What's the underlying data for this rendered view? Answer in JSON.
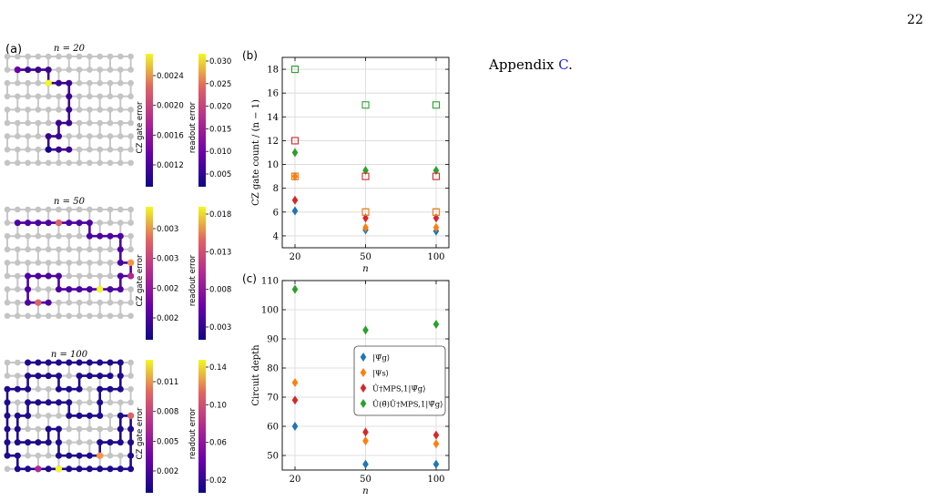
{
  "page": {
    "number": "22",
    "text_prefix": "Appendix ",
    "text_link": "C",
    "text_suffix": "."
  },
  "panel_a": {
    "label": "(a)",
    "rows": [
      {
        "title": "n = 20",
        "cz_label": "CZ gate error",
        "cz_ticks": [
          "0.0024",
          "0.0020",
          "0.0016",
          "0.0012"
        ],
        "ro_label": "readout error",
        "ro_ticks": [
          "0.030",
          "0.025",
          "0.020",
          "0.015",
          "0.010",
          "0.005"
        ]
      },
      {
        "title": "n = 50",
        "cz_label": "CZ gate error",
        "cz_ticks": [
          "0.003",
          "0.003",
          "0.002",
          "0.002"
        ],
        "ro_label": "readout error",
        "ro_ticks": [
          "0.018",
          "0.013",
          "0.008",
          "0.003"
        ]
      },
      {
        "title": "n = 100",
        "cz_label": "CZ gate error",
        "cz_ticks": [
          "0.011",
          "0.008",
          "0.005",
          "0.002"
        ],
        "ro_label": "readout error",
        "ro_ticks": [
          "0.14",
          "0.10",
          "0.06",
          "0.02"
        ]
      }
    ]
  },
  "chart_data": [
    {
      "type": "scatter",
      "panel": "(b)",
      "xlabel": "n",
      "ylabel": "CZ gate count / (n − 1)",
      "x": [
        20,
        50,
        100
      ],
      "x_ticks": [
        "20",
        "50",
        "100"
      ],
      "ylim": [
        3,
        19
      ],
      "y_ticks": [
        4,
        6,
        8,
        10,
        12,
        14,
        16,
        18
      ],
      "grid": true,
      "series": [
        {
          "marker": "diamond",
          "color": "#1f77b4",
          "values": [
            6.1,
            4.5,
            4.4
          ]
        },
        {
          "marker": "diamond",
          "color": "#ff7f0e",
          "values": [
            9.0,
            4.7,
            4.7
          ]
        },
        {
          "marker": "diamond",
          "color": "#d62728",
          "values": [
            7.0,
            5.5,
            5.5
          ]
        },
        {
          "marker": "diamond",
          "color": "#2ca02c",
          "values": [
            11.0,
            9.5,
            9.5
          ]
        },
        {
          "marker": "open-square",
          "color": "#1f77b4",
          "values": [
            9.0,
            6.0,
            6.0
          ]
        },
        {
          "marker": "open-square",
          "color": "#ff7f0e",
          "values": [
            9.0,
            6.0,
            6.0
          ]
        },
        {
          "marker": "open-square",
          "color": "#d62728",
          "values": [
            12.0,
            9.0,
            9.0
          ]
        },
        {
          "marker": "open-square",
          "color": "#2ca02c",
          "values": [
            18.0,
            15.0,
            15.0
          ]
        }
      ]
    },
    {
      "type": "scatter",
      "panel": "(c)",
      "xlabel": "n",
      "ylabel": "Circuit depth",
      "x": [
        20,
        50,
        100
      ],
      "x_ticks": [
        "20",
        "50",
        "100"
      ],
      "ylim": [
        45,
        110
      ],
      "y_ticks": [
        50,
        60,
        70,
        80,
        90,
        100,
        110
      ],
      "grid": true,
      "legend": "center-right",
      "series": [
        {
          "name": "|Ψ̃g⟩",
          "marker": "diamond",
          "color": "#1f77b4",
          "values": [
            60,
            47,
            47
          ]
        },
        {
          "name": "|Ψs⟩",
          "marker": "diamond",
          "color": "#ff7f0e",
          "values": [
            75,
            55,
            54
          ]
        },
        {
          "name": "Û†MPS,1|Ψ̃g⟩",
          "marker": "diamond",
          "color": "#d62728",
          "values": [
            69,
            58,
            57
          ]
        },
        {
          "name": "Û(θ̄)Û†MPS,1|Ψ̃g⟩",
          "marker": "diamond",
          "color": "#2ca02c",
          "values": [
            107,
            93,
            95
          ]
        }
      ]
    }
  ]
}
